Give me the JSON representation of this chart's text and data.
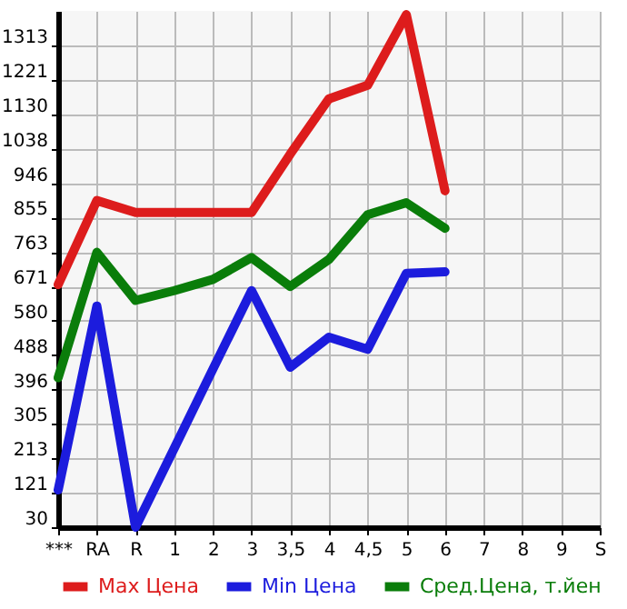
{
  "chart_data": {
    "type": "line",
    "categories": [
      "***",
      "RA",
      "R",
      "1",
      "2",
      "3",
      "3,5",
      "4",
      "4,5",
      "5",
      "6",
      "7",
      "8",
      "9",
      "S"
    ],
    "series": [
      {
        "name": "Max Цена",
        "color": "#dd1c1c",
        "values": [
          676,
          900,
          868,
          868,
          868,
          868,
          1024,
          1171,
          1207,
          1395,
          926,
          null,
          null,
          null,
          null
        ]
      },
      {
        "name": "Min Цена",
        "color": "#1c1cdd",
        "values": [
          129,
          619,
          30,
          240,
          451,
          660,
          456,
          536,
          504,
          706,
          710,
          null,
          null,
          null,
          null
        ]
      },
      {
        "name": "Сред.Цена, т.йен",
        "color": "#0a7d0a",
        "values": [
          428,
          762,
          634,
          660,
          690,
          748,
          671,
          743,
          862,
          894,
          826,
          null,
          null,
          null,
          null
        ]
      }
    ],
    "ylim": [
      30,
      1405
    ],
    "yticks": [
      30,
      121,
      213,
      305,
      396,
      488,
      580,
      671,
      763,
      855,
      946,
      1038,
      1130,
      1221,
      1313
    ],
    "grid": true,
    "legend": "bottom",
    "marker": "none",
    "line_style": "solid"
  }
}
